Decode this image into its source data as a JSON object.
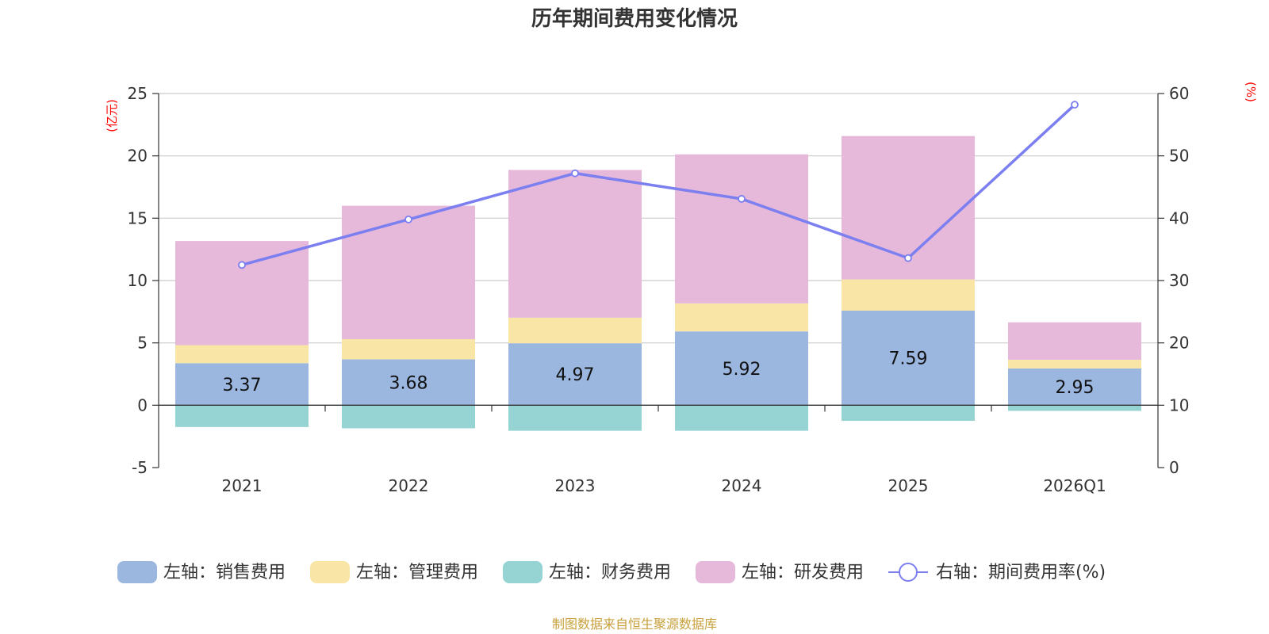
{
  "chart_data": {
    "type": "bar",
    "title": "历年期间费用变化情况",
    "categories": [
      "2021",
      "2022",
      "2023",
      "2024",
      "2025",
      "2026Q1"
    ],
    "left_axis": {
      "unit": "(亿元)",
      "ylim": [
        -5,
        25
      ],
      "ticks": [
        -5,
        0,
        5,
        10,
        15,
        20,
        25
      ]
    },
    "right_axis": {
      "unit": "(%)",
      "ylim": [
        0,
        60
      ],
      "ticks": [
        0,
        10,
        20,
        30,
        40,
        50,
        60
      ]
    },
    "series": [
      {
        "name": "左轴：销售费用",
        "type": "bar",
        "axis": "left",
        "color": "#9bb7e0",
        "values": [
          3.37,
          3.68,
          4.97,
          5.92,
          7.59,
          2.95
        ],
        "labels": [
          "3.37",
          "3.68",
          "4.97",
          "5.92",
          "7.59",
          "2.95"
        ]
      },
      {
        "name": "左轴：管理费用",
        "type": "bar",
        "axis": "left",
        "color": "#f9e6a6",
        "values": [
          1.45,
          1.62,
          2.05,
          2.25,
          2.5,
          0.7
        ]
      },
      {
        "name": "左轴：财务费用",
        "type": "bar",
        "axis": "left",
        "color": "#96d4d4",
        "values": [
          -1.75,
          -1.85,
          -2.05,
          -2.05,
          -1.25,
          -0.45
        ]
      },
      {
        "name": "左轴：研发费用",
        "type": "bar",
        "axis": "left",
        "color": "#e6b8da",
        "values": [
          8.35,
          10.7,
          11.85,
          11.95,
          11.5,
          3.0
        ]
      },
      {
        "name": "右轴：期间费用率(%)",
        "type": "line",
        "axis": "right",
        "color": "#7b7ff0",
        "values": [
          32.5,
          39.8,
          47.2,
          43.1,
          33.6,
          58.2
        ]
      }
    ],
    "legend_position": "bottom",
    "source": "制图数据来自恒生聚源数据库"
  }
}
